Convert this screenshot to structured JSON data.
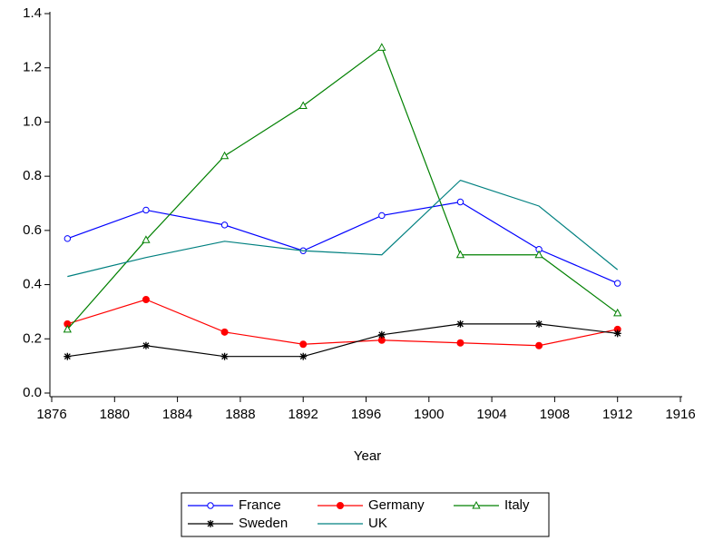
{
  "chart_data": {
    "type": "line",
    "x_label": "Year",
    "x": [
      1877,
      1882,
      1887,
      1892,
      1897,
      1902,
      1907,
      1912
    ],
    "xlim": [
      1876,
      1916
    ],
    "xticks": [
      1876,
      1880,
      1884,
      1888,
      1892,
      1896,
      1900,
      1904,
      1908,
      1912,
      1916
    ],
    "ylim": [
      0,
      1.4
    ],
    "yticks": [
      {
        "value": 0,
        "label": "0.0"
      },
      0.2,
      0.4,
      0.6,
      0.8,
      {
        "value": 1,
        "label": "1.0"
      },
      1.2,
      1.4
    ],
    "series": [
      {
        "name": "France",
        "color": "#0000ff",
        "marker": "open-circle",
        "values": [
          0.57,
          0.675,
          0.62,
          0.525,
          0.655,
          0.705,
          0.53,
          0.405
        ]
      },
      {
        "name": "Germany",
        "color": "#ff0000",
        "marker": "filled-circle",
        "values": [
          0.255,
          0.345,
          0.225,
          0.18,
          0.195,
          0.185,
          0.175,
          0.235
        ]
      },
      {
        "name": "Italy",
        "color": "#008000",
        "marker": "open-triangle",
        "values": [
          0.235,
          0.565,
          0.875,
          1.06,
          1.275,
          0.51,
          0.51,
          0.295
        ]
      },
      {
        "name": "Sweden",
        "color": "#000000",
        "marker": "star",
        "values": [
          0.135,
          0.175,
          0.135,
          0.135,
          0.215,
          0.255,
          0.255,
          0.22
        ]
      },
      {
        "name": "UK",
        "color": "#008080",
        "marker": "none",
        "values": [
          0.43,
          0.5,
          0.56,
          0.525,
          0.51,
          0.785,
          0.69,
          0.455
        ]
      }
    ],
    "legend": "bottom"
  }
}
